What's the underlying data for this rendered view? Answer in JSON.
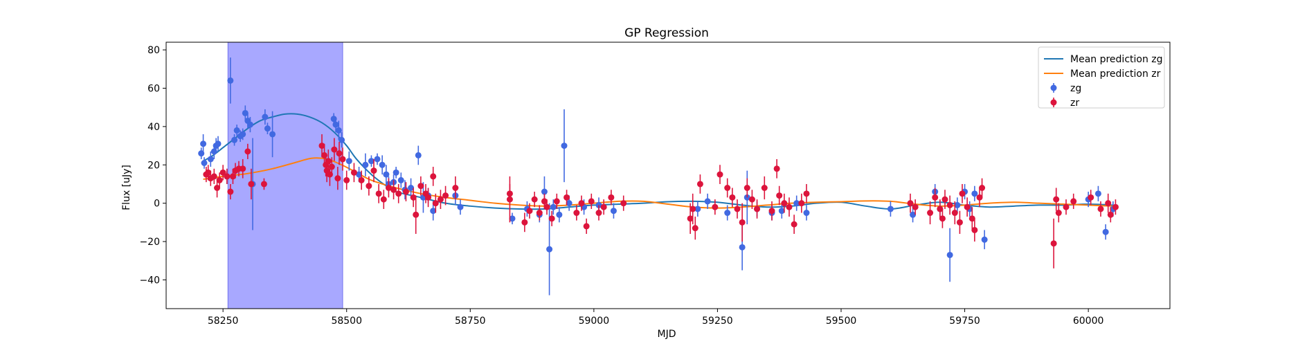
{
  "chart_data": {
    "type": "scatter",
    "title": "GP Regression",
    "xlabel": "MJD",
    "ylabel": "Flux [uJy]",
    "xlim": [
      58135,
      60165
    ],
    "ylim": [
      -55,
      84
    ],
    "xticks": [
      58250,
      58500,
      58750,
      59000,
      59250,
      59500,
      59750,
      60000
    ],
    "yticks": [
      -40,
      -20,
      0,
      20,
      40,
      60,
      80
    ],
    "grid": false,
    "legend_position": "top-right",
    "shaded_region": {
      "x_start": 58260,
      "x_end": 58492,
      "color": "#a8a8ff"
    },
    "colors": {
      "zg_points": "#4169e1",
      "zr_points": "#dc143c",
      "zg_line": "#1f77b4",
      "zr_line": "#ff7f0e"
    },
    "lines": [
      {
        "name": "Mean prediction zg",
        "color": "#1f77b4",
        "x": [
          58210,
          58230,
          58250,
          58275,
          58300,
          58325,
          58350,
          58375,
          58400,
          58425,
          58450,
          58475,
          58500,
          58520,
          58550,
          58580,
          58600,
          58650,
          58700,
          58750,
          58800,
          58850,
          58900,
          58950,
          59000,
          59050,
          59100,
          59150,
          59200,
          59250,
          59300,
          59350,
          59400,
          59450,
          59500,
          59550,
          59600,
          59650,
          59700,
          59750,
          59800,
          59850,
          59900,
          59950,
          60000,
          60050
        ],
        "y": [
          22,
          25,
          29,
          34,
          39,
          43,
          45,
          46.5,
          46.5,
          45,
          42,
          37,
          30,
          23,
          15,
          9,
          6,
          3,
          0,
          -1.5,
          -2.5,
          -3,
          -3,
          -2,
          -1,
          -0.5,
          0,
          0.8,
          1,
          0.5,
          -1,
          -2,
          -1.5,
          0,
          0.5,
          -1.5,
          -3,
          -1,
          0.5,
          -1,
          -2,
          -1.5,
          -1,
          -1,
          -0.5,
          -1
        ]
      },
      {
        "name": "Mean prediction zr",
        "color": "#ff7f0e",
        "x": [
          58210,
          58250,
          58300,
          58350,
          58400,
          58430,
          58460,
          58490,
          58520,
          58550,
          58600,
          58650,
          58700,
          58750,
          58800,
          58850,
          58900,
          58950,
          59000,
          59050,
          59100,
          59150,
          59200,
          59250,
          59300,
          59350,
          59400,
          59450,
          59500,
          59550,
          59600,
          59650,
          59700,
          59750,
          59800,
          59850,
          59900,
          59950,
          60000,
          60050
        ],
        "y": [
          12.5,
          14,
          15.5,
          18,
          21.5,
          23.5,
          23,
          20,
          16,
          12,
          8,
          5,
          3,
          1.5,
          0,
          -1,
          -1.5,
          -1,
          0,
          1,
          1,
          -0.5,
          -2,
          -2.5,
          -2,
          -1,
          0,
          0.5,
          0.8,
          1.2,
          1,
          -0.5,
          -1.5,
          -1,
          0,
          0.5,
          0,
          -0.5,
          -1,
          -1.5
        ]
      }
    ],
    "series": [
      {
        "name": "zg",
        "color": "#4169e1",
        "points": [
          [
            58206,
            26,
            3
          ],
          [
            58210,
            31,
            5
          ],
          [
            58212,
            21,
            3
          ],
          [
            58225,
            23,
            4
          ],
          [
            58232,
            27,
            4
          ],
          [
            58236,
            30,
            4
          ],
          [
            58240,
            31,
            4
          ],
          [
            58258,
            14,
            4
          ],
          [
            58265,
            64,
            12
          ],
          [
            58273,
            33,
            3
          ],
          [
            58278,
            38,
            3
          ],
          [
            58285,
            35,
            3
          ],
          [
            58290,
            36,
            3
          ],
          [
            58295,
            47,
            4
          ],
          [
            58300,
            43,
            4
          ],
          [
            58305,
            41,
            4
          ],
          [
            58310,
            10,
            24
          ],
          [
            58335,
            45,
            4
          ],
          [
            58340,
            39,
            3
          ],
          [
            58350,
            36,
            12
          ],
          [
            58474,
            44,
            3
          ],
          [
            58478,
            41,
            4
          ],
          [
            58484,
            38,
            5
          ],
          [
            58490,
            33,
            4
          ],
          [
            58505,
            22,
            5
          ],
          [
            58525,
            15,
            4
          ],
          [
            58538,
            20,
            6
          ],
          [
            58550,
            22,
            3
          ],
          [
            58562,
            23,
            3
          ],
          [
            58572,
            20,
            5
          ],
          [
            58580,
            15,
            5
          ],
          [
            58585,
            10,
            4
          ],
          [
            58595,
            11,
            4
          ],
          [
            58600,
            16,
            3
          ],
          [
            58610,
            12,
            4
          ],
          [
            58618,
            7,
            5
          ],
          [
            58630,
            8,
            5
          ],
          [
            58645,
            25,
            5
          ],
          [
            58655,
            3,
            8
          ],
          [
            58665,
            4,
            4
          ],
          [
            58675,
            -4,
            5
          ],
          [
            58720,
            4,
            5
          ],
          [
            58730,
            -2,
            4
          ],
          [
            58835,
            -8,
            3
          ],
          [
            58865,
            -3,
            4
          ],
          [
            58890,
            -6,
            4
          ],
          [
            58900,
            6,
            8
          ],
          [
            58910,
            -24,
            24
          ],
          [
            58918,
            -2,
            4
          ],
          [
            58930,
            -6,
            4
          ],
          [
            58940,
            30,
            19
          ],
          [
            58950,
            0,
            4
          ],
          [
            58980,
            -2,
            4
          ],
          [
            59010,
            -1,
            4
          ],
          [
            59040,
            -4,
            4
          ],
          [
            59210,
            -3,
            4
          ],
          [
            59230,
            1,
            4
          ],
          [
            59270,
            -5,
            4
          ],
          [
            59300,
            -23,
            12
          ],
          [
            59310,
            3,
            14
          ],
          [
            59330,
            -3,
            4
          ],
          [
            59360,
            -5,
            4
          ],
          [
            59380,
            -4,
            4
          ],
          [
            59410,
            0,
            4
          ],
          [
            59430,
            -5,
            4
          ],
          [
            59600,
            -3,
            4
          ],
          [
            59645,
            -6,
            4
          ],
          [
            59690,
            6,
            4
          ],
          [
            59700,
            -3,
            4
          ],
          [
            59720,
            -27,
            14
          ],
          [
            59735,
            -1,
            4
          ],
          [
            59750,
            6,
            4
          ],
          [
            59760,
            -3,
            4
          ],
          [
            59770,
            5,
            4
          ],
          [
            59790,
            -19,
            5
          ],
          [
            60000,
            2,
            4
          ],
          [
            60020,
            5,
            4
          ],
          [
            60035,
            -15,
            4
          ],
          [
            60050,
            -3,
            4
          ]
        ]
      },
      {
        "name": "zr",
        "color": "#dc143c",
        "points": [
          [
            58216,
            15,
            4
          ],
          [
            58220,
            16,
            4
          ],
          [
            58225,
            13,
            4
          ],
          [
            58232,
            14,
            4
          ],
          [
            58238,
            8,
            5
          ],
          [
            58243,
            12,
            4
          ],
          [
            58250,
            16,
            4
          ],
          [
            58258,
            14,
            4
          ],
          [
            58265,
            6,
            4
          ],
          [
            58270,
            14,
            4
          ],
          [
            58275,
            17,
            4
          ],
          [
            58282,
            18,
            4
          ],
          [
            58290,
            18,
            5
          ],
          [
            58300,
            27,
            4
          ],
          [
            58307,
            10,
            8
          ],
          [
            58333,
            10,
            3
          ],
          [
            58450,
            30,
            6
          ],
          [
            58455,
            25,
            6
          ],
          [
            58458,
            20,
            6
          ],
          [
            58460,
            17,
            6
          ],
          [
            58463,
            22,
            6
          ],
          [
            58466,
            15,
            6
          ],
          [
            58470,
            19,
            5
          ],
          [
            58475,
            28,
            6
          ],
          [
            58482,
            13,
            6
          ],
          [
            58485,
            26,
            6
          ],
          [
            58492,
            23,
            6
          ],
          [
            58500,
            12,
            5
          ],
          [
            58515,
            16,
            5
          ],
          [
            58530,
            12,
            5
          ],
          [
            58545,
            9,
            5
          ],
          [
            58555,
            17,
            6
          ],
          [
            58565,
            5,
            5
          ],
          [
            58575,
            2,
            5
          ],
          [
            58585,
            8,
            5
          ],
          [
            58595,
            7,
            5
          ],
          [
            58605,
            5,
            5
          ],
          [
            58620,
            6,
            5
          ],
          [
            58635,
            3,
            5
          ],
          [
            58640,
            -6,
            10
          ],
          [
            58650,
            9,
            5
          ],
          [
            58660,
            5,
            5
          ],
          [
            58665,
            3,
            5
          ],
          [
            58675,
            14,
            5
          ],
          [
            58680,
            0,
            5
          ],
          [
            58690,
            2,
            5
          ],
          [
            58700,
            4,
            5
          ],
          [
            58720,
            8,
            6
          ],
          [
            58830,
            2,
            12
          ],
          [
            58830,
            5,
            5
          ],
          [
            58860,
            -10,
            5
          ],
          [
            58870,
            -4,
            4
          ],
          [
            58880,
            2,
            4
          ],
          [
            58890,
            -5,
            4
          ],
          [
            58900,
            1,
            4
          ],
          [
            58905,
            -2,
            4
          ],
          [
            58915,
            -8,
            4
          ],
          [
            58925,
            1,
            4
          ],
          [
            58945,
            3,
            4
          ],
          [
            58965,
            -5,
            4
          ],
          [
            58975,
            0,
            4
          ],
          [
            58985,
            -12,
            4
          ],
          [
            58995,
            1,
            4
          ],
          [
            59010,
            -5,
            4
          ],
          [
            59020,
            -2,
            4
          ],
          [
            59035,
            3,
            4
          ],
          [
            59060,
            0,
            4
          ],
          [
            59195,
            -8,
            8
          ],
          [
            59200,
            -3,
            8
          ],
          [
            59205,
            -13,
            6
          ],
          [
            59215,
            10,
            5
          ],
          [
            59245,
            -2,
            4
          ],
          [
            59255,
            15,
            5
          ],
          [
            59270,
            8,
            5
          ],
          [
            59280,
            3,
            5
          ],
          [
            59290,
            -3,
            5
          ],
          [
            59300,
            -10,
            10
          ],
          [
            59310,
            8,
            5
          ],
          [
            59320,
            2,
            5
          ],
          [
            59330,
            -3,
            5
          ],
          [
            59345,
            8,
            6
          ],
          [
            59360,
            -4,
            5
          ],
          [
            59370,
            18,
            5
          ],
          [
            59375,
            4,
            5
          ],
          [
            59385,
            0,
            5
          ],
          [
            59395,
            -2,
            5
          ],
          [
            59405,
            -11,
            5
          ],
          [
            59420,
            0,
            5
          ],
          [
            59430,
            5,
            5
          ],
          [
            59640,
            0,
            5
          ],
          [
            59650,
            -2,
            4
          ],
          [
            59680,
            -5,
            6
          ],
          [
            59690,
            3,
            5
          ],
          [
            59700,
            -3,
            5
          ],
          [
            59705,
            -8,
            5
          ],
          [
            59710,
            2,
            5
          ],
          [
            59720,
            -1,
            5
          ],
          [
            59730,
            -5,
            6
          ],
          [
            59740,
            -10,
            6
          ],
          [
            59745,
            5,
            5
          ],
          [
            59755,
            -2,
            5
          ],
          [
            59765,
            -8,
            6
          ],
          [
            59770,
            -14,
            6
          ],
          [
            59780,
            3,
            5
          ],
          [
            59785,
            8,
            5
          ],
          [
            59930,
            -21,
            13
          ],
          [
            59935,
            2,
            6
          ],
          [
            59940,
            -5,
            5
          ],
          [
            59955,
            -2,
            4
          ],
          [
            59970,
            1,
            4
          ],
          [
            60005,
            3,
            4
          ],
          [
            60025,
            -3,
            4
          ],
          [
            60040,
            0,
            5
          ],
          [
            60045,
            -6,
            4
          ],
          [
            60055,
            -2,
            4
          ]
        ]
      }
    ]
  }
}
